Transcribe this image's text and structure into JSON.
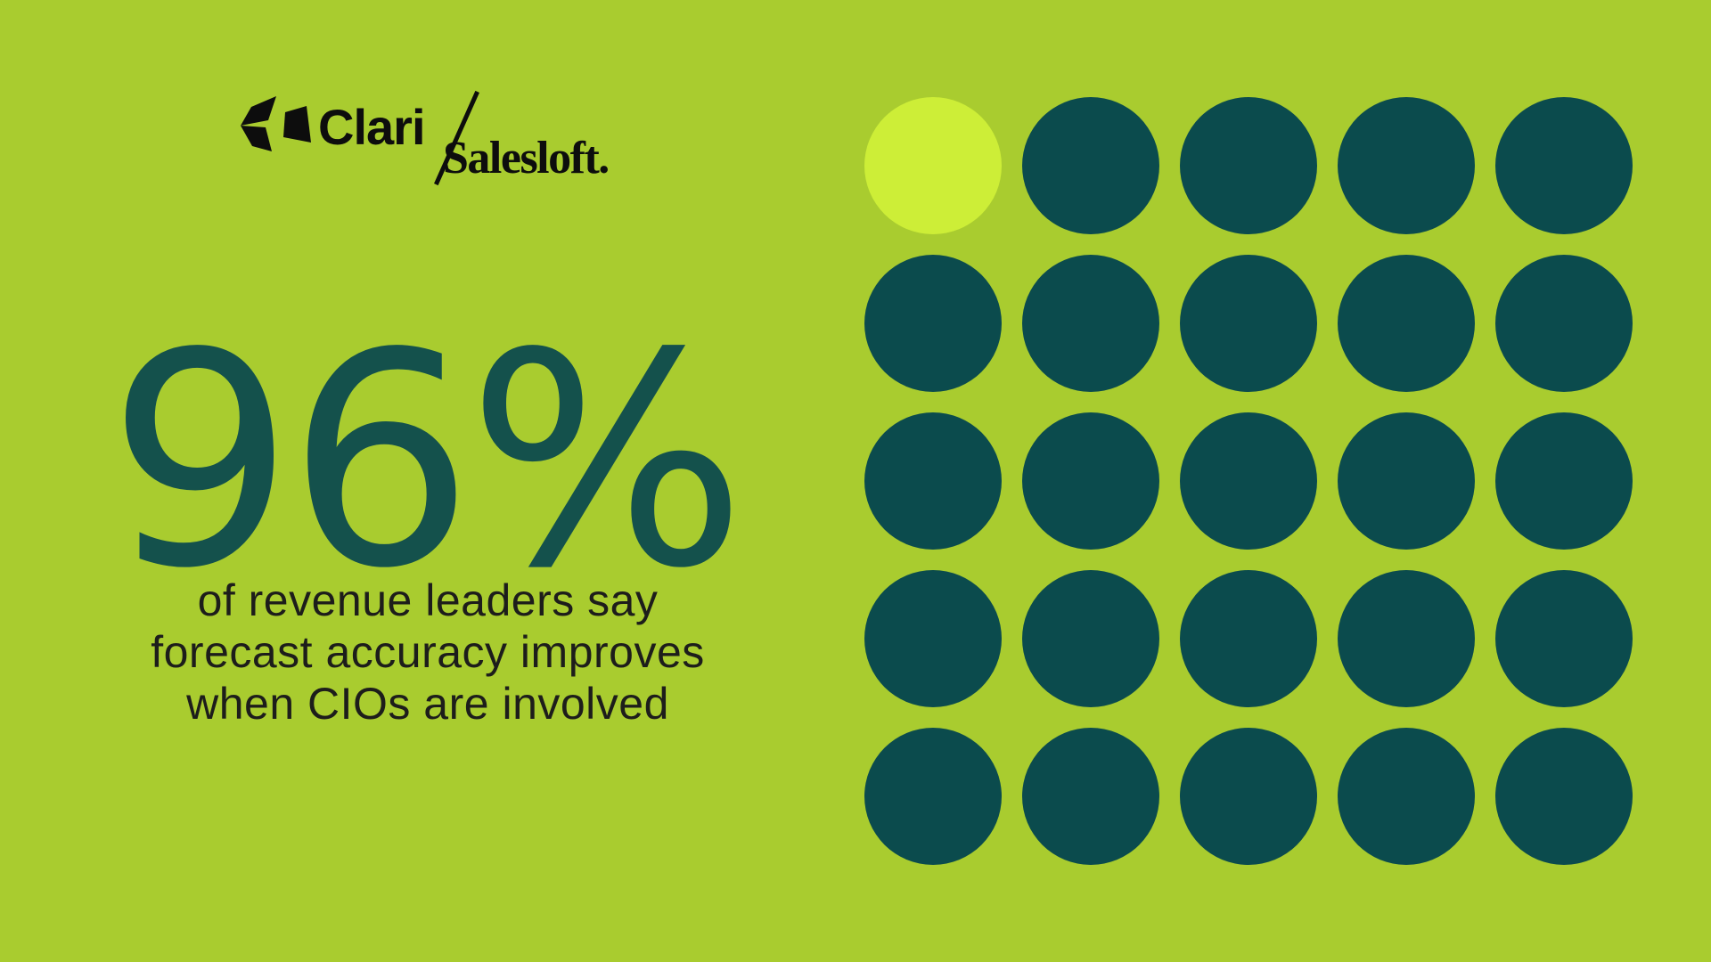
{
  "brand": {
    "clari_label": "Clari",
    "salesloft_label": "Salesloft.",
    "logo_icon": "clari-arrow-mark-icon"
  },
  "stat": {
    "value": "96%",
    "description_lines": [
      "of revenue leaders say",
      "forecast accuracy improves",
      "when CIOs are involved"
    ]
  },
  "colors": {
    "background": "#A9CC2F",
    "dot_dark": "#0B4B4D",
    "dot_highlight": "#CDEE37",
    "stat_text": "#14514C",
    "body_text": "#1D1D1B",
    "logo_ink": "#0D0D0D"
  },
  "chart_data": {
    "type": "pictograph",
    "title": "96% of revenue leaders say forecast accuracy improves when CIOs are involved",
    "value_percent": 96,
    "statistic_label": "96%",
    "grid": {
      "rows": 5,
      "cols": 5,
      "total_dots": 25,
      "dark_dots": 24,
      "highlight_dots": 1,
      "highlight_position": "top-left"
    },
    "legend_position": "none",
    "axes": "none"
  }
}
